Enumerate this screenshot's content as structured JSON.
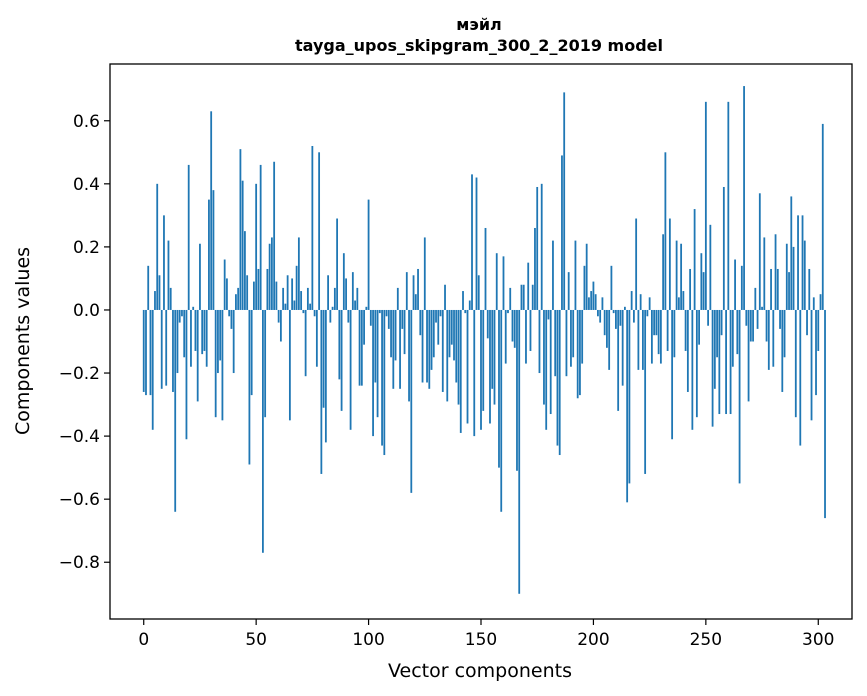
{
  "chart_data": {
    "type": "bar",
    "title": "мэйл",
    "subtitle": "tayga_upos_skipgram_300_2_2019 model",
    "xlabel": "Vector components",
    "ylabel": "Components values",
    "xlim": [
      -15,
      315
    ],
    "ylim": [
      -0.98,
      0.78
    ],
    "xticks": [
      0,
      50,
      100,
      150,
      200,
      250,
      300
    ],
    "xtick_labels": [
      "0",
      "50",
      "100",
      "150",
      "200",
      "250",
      "300"
    ],
    "yticks": [
      -0.8,
      -0.6,
      -0.4,
      -0.2,
      0.0,
      0.2,
      0.4,
      0.6
    ],
    "ytick_labels": [
      "−0.8",
      "−0.6",
      "−0.4",
      "−0.2",
      "0.0",
      "0.2",
      "0.4",
      "0.6"
    ],
    "grid": false,
    "bar_color": "#1f77b4",
    "values": [
      -0.26,
      -0.27,
      0.14,
      -0.27,
      -0.38,
      0.06,
      0.4,
      0.11,
      -0.25,
      0.3,
      -0.24,
      0.22,
      0.07,
      -0.26,
      -0.64,
      -0.2,
      -0.04,
      -0.02,
      -0.15,
      -0.41,
      0.46,
      -0.18,
      0.01,
      -0.13,
      -0.29,
      0.21,
      -0.14,
      -0.13,
      -0.18,
      0.35,
      0.63,
      0.38,
      -0.34,
      -0.2,
      -0.16,
      -0.35,
      0.16,
      0.1,
      -0.02,
      -0.06,
      -0.2,
      0.05,
      0.07,
      0.51,
      0.41,
      0.25,
      0.11,
      -0.49,
      -0.27,
      0.09,
      0.4,
      0.13,
      0.46,
      -0.77,
      -0.34,
      0.13,
      0.21,
      0.23,
      0.47,
      0.09,
      -0.04,
      -0.1,
      0.07,
      0.02,
      0.11,
      -0.35,
      0.1,
      0.03,
      0.14,
      0.23,
      0.06,
      -0.01,
      -0.21,
      0.07,
      0.02,
      0.52,
      -0.02,
      -0.18,
      0.5,
      -0.52,
      -0.31,
      -0.42,
      0.11,
      -0.04,
      0.01,
      0.07,
      0.29,
      -0.22,
      -0.32,
      0.18,
      0.1,
      -0.04,
      -0.38,
      0.12,
      0.03,
      0.07,
      -0.24,
      -0.24,
      -0.11,
      0.01,
      0.35,
      -0.05,
      -0.4,
      -0.23,
      -0.34,
      -0.01,
      -0.43,
      -0.46,
      -0.02,
      -0.06,
      -0.15,
      -0.25,
      -0.16,
      0.07,
      -0.25,
      -0.06,
      -0.14,
      0.12,
      -0.29,
      -0.58,
      0.11,
      0.05,
      0.13,
      -0.08,
      -0.23,
      0.23,
      -0.23,
      -0.25,
      -0.19,
      -0.15,
      -0.04,
      -0.11,
      -0.02,
      -0.26,
      0.08,
      -0.29,
      -0.15,
      -0.11,
      -0.16,
      -0.23,
      -0.3,
      -0.39,
      0.06,
      -0.01,
      -0.36,
      0.03,
      0.43,
      -0.4,
      0.42,
      0.11,
      -0.38,
      -0.32,
      0.26,
      -0.09,
      -0.36,
      -0.25,
      -0.3,
      0.18,
      -0.5,
      -0.64,
      0.17,
      -0.17,
      -0.01,
      0.07,
      -0.1,
      -0.12,
      -0.51,
      -0.9,
      0.08,
      0.08,
      -0.17,
      0.15,
      -0.13,
      0.08,
      0.26,
      0.39,
      -0.2,
      0.4,
      -0.3,
      -0.38,
      -0.03,
      -0.33,
      0.22,
      -0.21,
      -0.43,
      -0.46,
      0.49,
      0.69,
      -0.21,
      0.12,
      -0.18,
      -0.15,
      0.22,
      -0.28,
      -0.27,
      -0.17,
      0.14,
      0.21,
      0.04,
      0.06,
      0.09,
      0.05,
      -0.02,
      -0.04,
      0.04,
      -0.08,
      -0.12,
      -0.19,
      0.14,
      -0.01,
      -0.06,
      -0.32,
      -0.05,
      -0.24,
      0.01,
      -0.61,
      -0.55,
      0.06,
      -0.04,
      0.29,
      -0.19,
      0.05,
      -0.19,
      -0.52,
      -0.02,
      0.04,
      -0.17,
      -0.08,
      -0.08,
      -0.14,
      -0.17,
      0.24,
      0.5,
      -0.13,
      0.29,
      -0.41,
      -0.15,
      0.22,
      0.04,
      0.21,
      0.06,
      -0.13,
      -0.26,
      0.13,
      -0.38,
      0.32,
      -0.34,
      -0.11,
      0.18,
      0.12,
      0.66,
      -0.05,
      0.27,
      -0.37,
      -0.25,
      -0.15,
      -0.33,
      -0.08,
      0.39,
      -0.33,
      0.66,
      -0.33,
      -0.18,
      0.16,
      -0.14,
      -0.55,
      0.14,
      0.71,
      -0.05,
      -0.29,
      -0.1,
      -0.1,
      0.07,
      -0.06,
      0.37,
      0.01,
      0.23,
      -0.1,
      -0.19,
      0.13,
      -0.18,
      0.24,
      0.13,
      -0.06,
      -0.26,
      -0.15,
      0.21,
      0.12,
      0.36,
      0.2,
      -0.34,
      0.3,
      -0.43,
      0.3,
      0.22,
      -0.08,
      0.13,
      -0.35,
      0.04,
      -0.27,
      -0.13,
      0.05,
      0.59,
      -0.66
    ]
  }
}
